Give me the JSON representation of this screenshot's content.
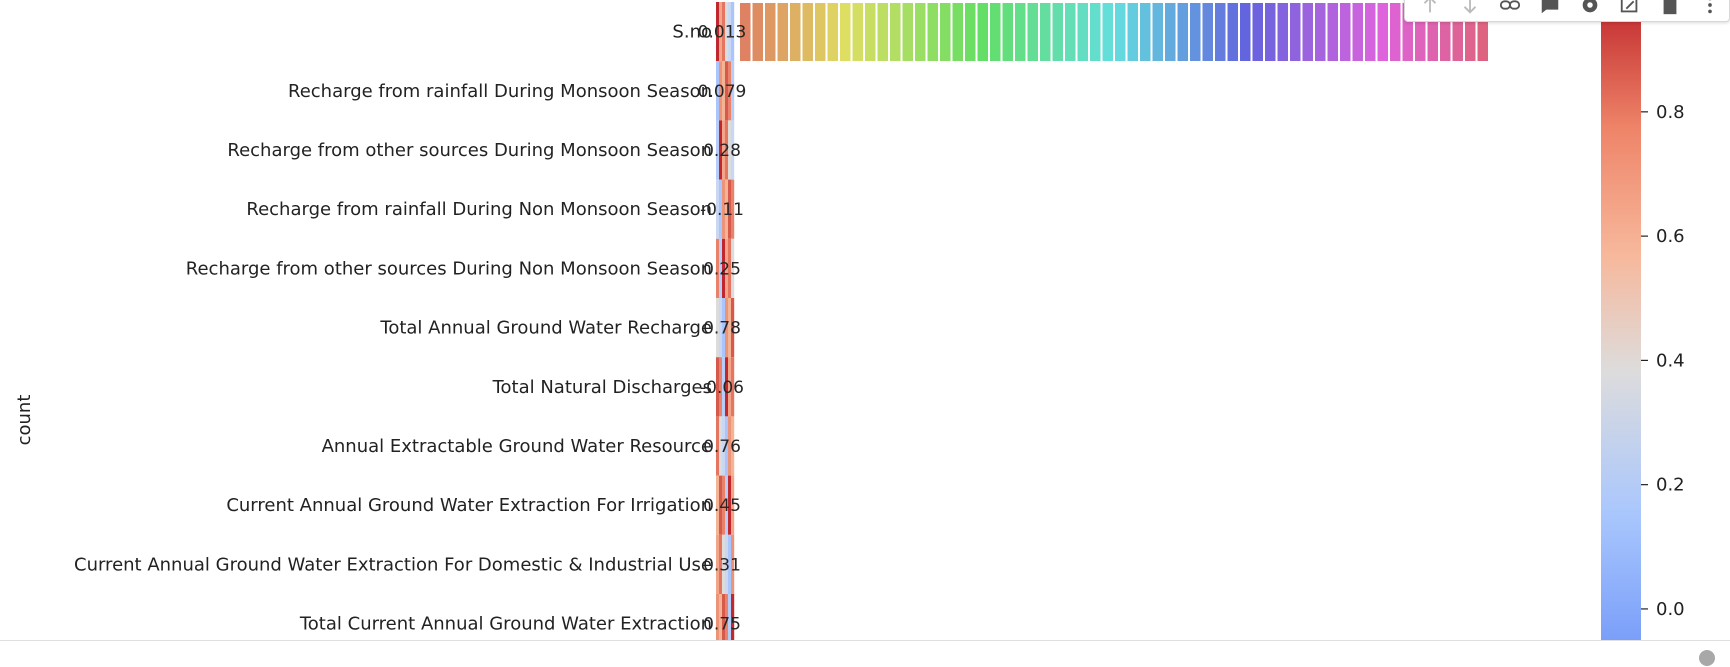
{
  "chart_data": {
    "type": "heatmap",
    "ylabel": "count",
    "rows": [
      "S.no",
      "Recharge from rainfall During Monsoon Season",
      "Recharge from other sources During Monsoon Season",
      "Recharge from rainfall During Non Monsoon Season",
      "Recharge from other sources During Non Monsoon Season",
      "Total Annual Ground Water Recharge",
      "Total Natural Discharges",
      "Annual Extractable Ground Water Resource",
      "Current Annual Ground Water Extraction For Irrigation",
      "Current Annual Ground Water Extraction For Domestic & Industrial Use",
      "Total Current Annual Ground Water Extraction"
    ],
    "cell_labels": [
      "0.013",
      "0.079",
      "0.28",
      "-0.11",
      "0.25",
      "0.78",
      "-0.06",
      "0.76",
      "0.45",
      "0.31",
      "0.75"
    ],
    "colorbar": {
      "ticks": [
        "0.0",
        "0.2",
        "0.4",
        "0.6",
        "0.8"
      ],
      "range": [
        -0.05,
        0.98
      ]
    }
  },
  "toolbar": {
    "buttons": [
      {
        "name": "move-up-icon"
      },
      {
        "name": "move-down-icon"
      },
      {
        "name": "link-icon"
      },
      {
        "name": "comment-icon"
      },
      {
        "name": "gear-icon"
      },
      {
        "name": "mirror-cell-icon"
      },
      {
        "name": "delete-icon"
      },
      {
        "name": "more-options-icon"
      }
    ]
  }
}
